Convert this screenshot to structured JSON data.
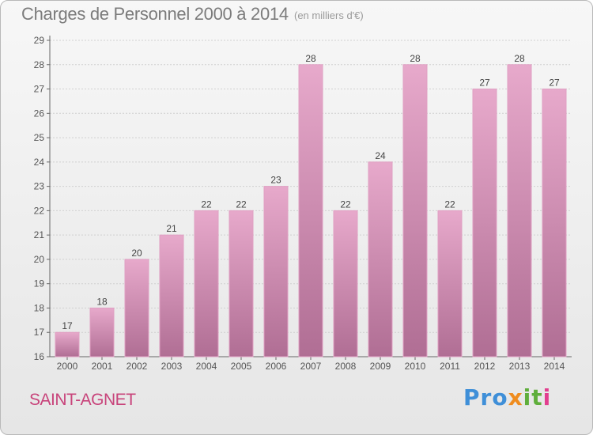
{
  "header": {
    "title": "Charges de Personnel 2000 à 2014",
    "subtitle": "(en milliers d'€)"
  },
  "footer": {
    "town": "SAINT-AGNET",
    "logo": [
      "Pro",
      "x",
      "it",
      "i"
    ]
  },
  "colors": {
    "bar_top": "#e7a9cb",
    "bar_bottom": "#b06e94",
    "bar_edge": "#e0a0c3",
    "grid": "#d0d0d0",
    "town": "#c8447b"
  },
  "chart_data": {
    "type": "bar",
    "categories": [
      "2000",
      "2001",
      "2002",
      "2003",
      "2004",
      "2005",
      "2006",
      "2007",
      "2008",
      "2009",
      "2010",
      "2011",
      "2012",
      "2013",
      "2014"
    ],
    "values": [
      17,
      18,
      20,
      21,
      22,
      22,
      23,
      28,
      22,
      24,
      28,
      22,
      27,
      28,
      27
    ],
    "title": "Charges de Personnel 2000 à 2014",
    "subtitle": "(en milliers d'€)",
    "ylim": [
      16,
      29
    ],
    "yticks": [
      16,
      17,
      18,
      19,
      20,
      21,
      22,
      23,
      24,
      25,
      26,
      27,
      28,
      29
    ],
    "grid": true,
    "data_labels": true
  }
}
